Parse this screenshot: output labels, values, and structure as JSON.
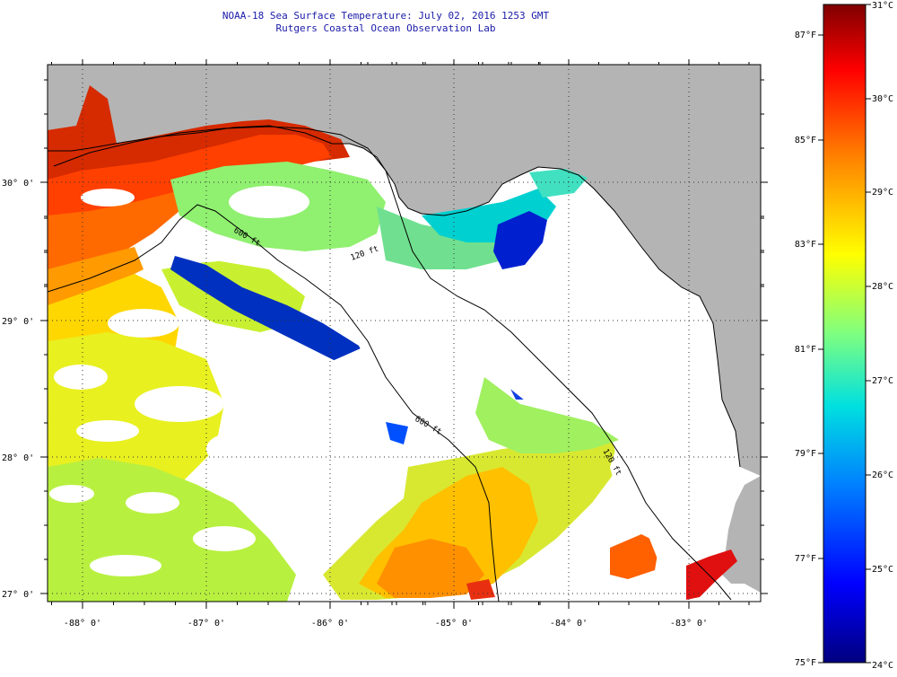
{
  "header": {
    "title": "NOAA-18 Sea Surface Temperature:  July 02, 2016 1253 GMT",
    "subtitle": "Rutgers Coastal Ocean Observation Lab"
  },
  "map": {
    "lon_labels": [
      "-88° 0'",
      "-87° 0'",
      "-86° 0'",
      "-85° 0'",
      "-84° 0'",
      "-83° 0'"
    ],
    "lat_labels": [
      "30° 0'",
      "29° 0'",
      "28° 0'",
      "27° 0'"
    ],
    "contours": [
      "600 ft",
      "120 ft",
      "600 ft",
      "120 ft"
    ],
    "colors": {
      "land": "#b4b4b4",
      "nodata": "#ffffff"
    }
  },
  "colorbar": {
    "fahrenheit": [
      "87°F",
      "85°F",
      "83°F",
      "81°F",
      "79°F",
      "77°F",
      "75°F"
    ],
    "celsius": [
      "31°C",
      "30°C",
      "29°C",
      "28°C",
      "27°C",
      "26°C",
      "25°C",
      "24°C"
    ],
    "range_c": [
      24,
      31
    ],
    "gradient": [
      "#00007f",
      "#0000ff",
      "#0080ff",
      "#00e0e0",
      "#7fff7f",
      "#ffff00",
      "#ff8000",
      "#ff0000",
      "#7f0000"
    ]
  }
}
